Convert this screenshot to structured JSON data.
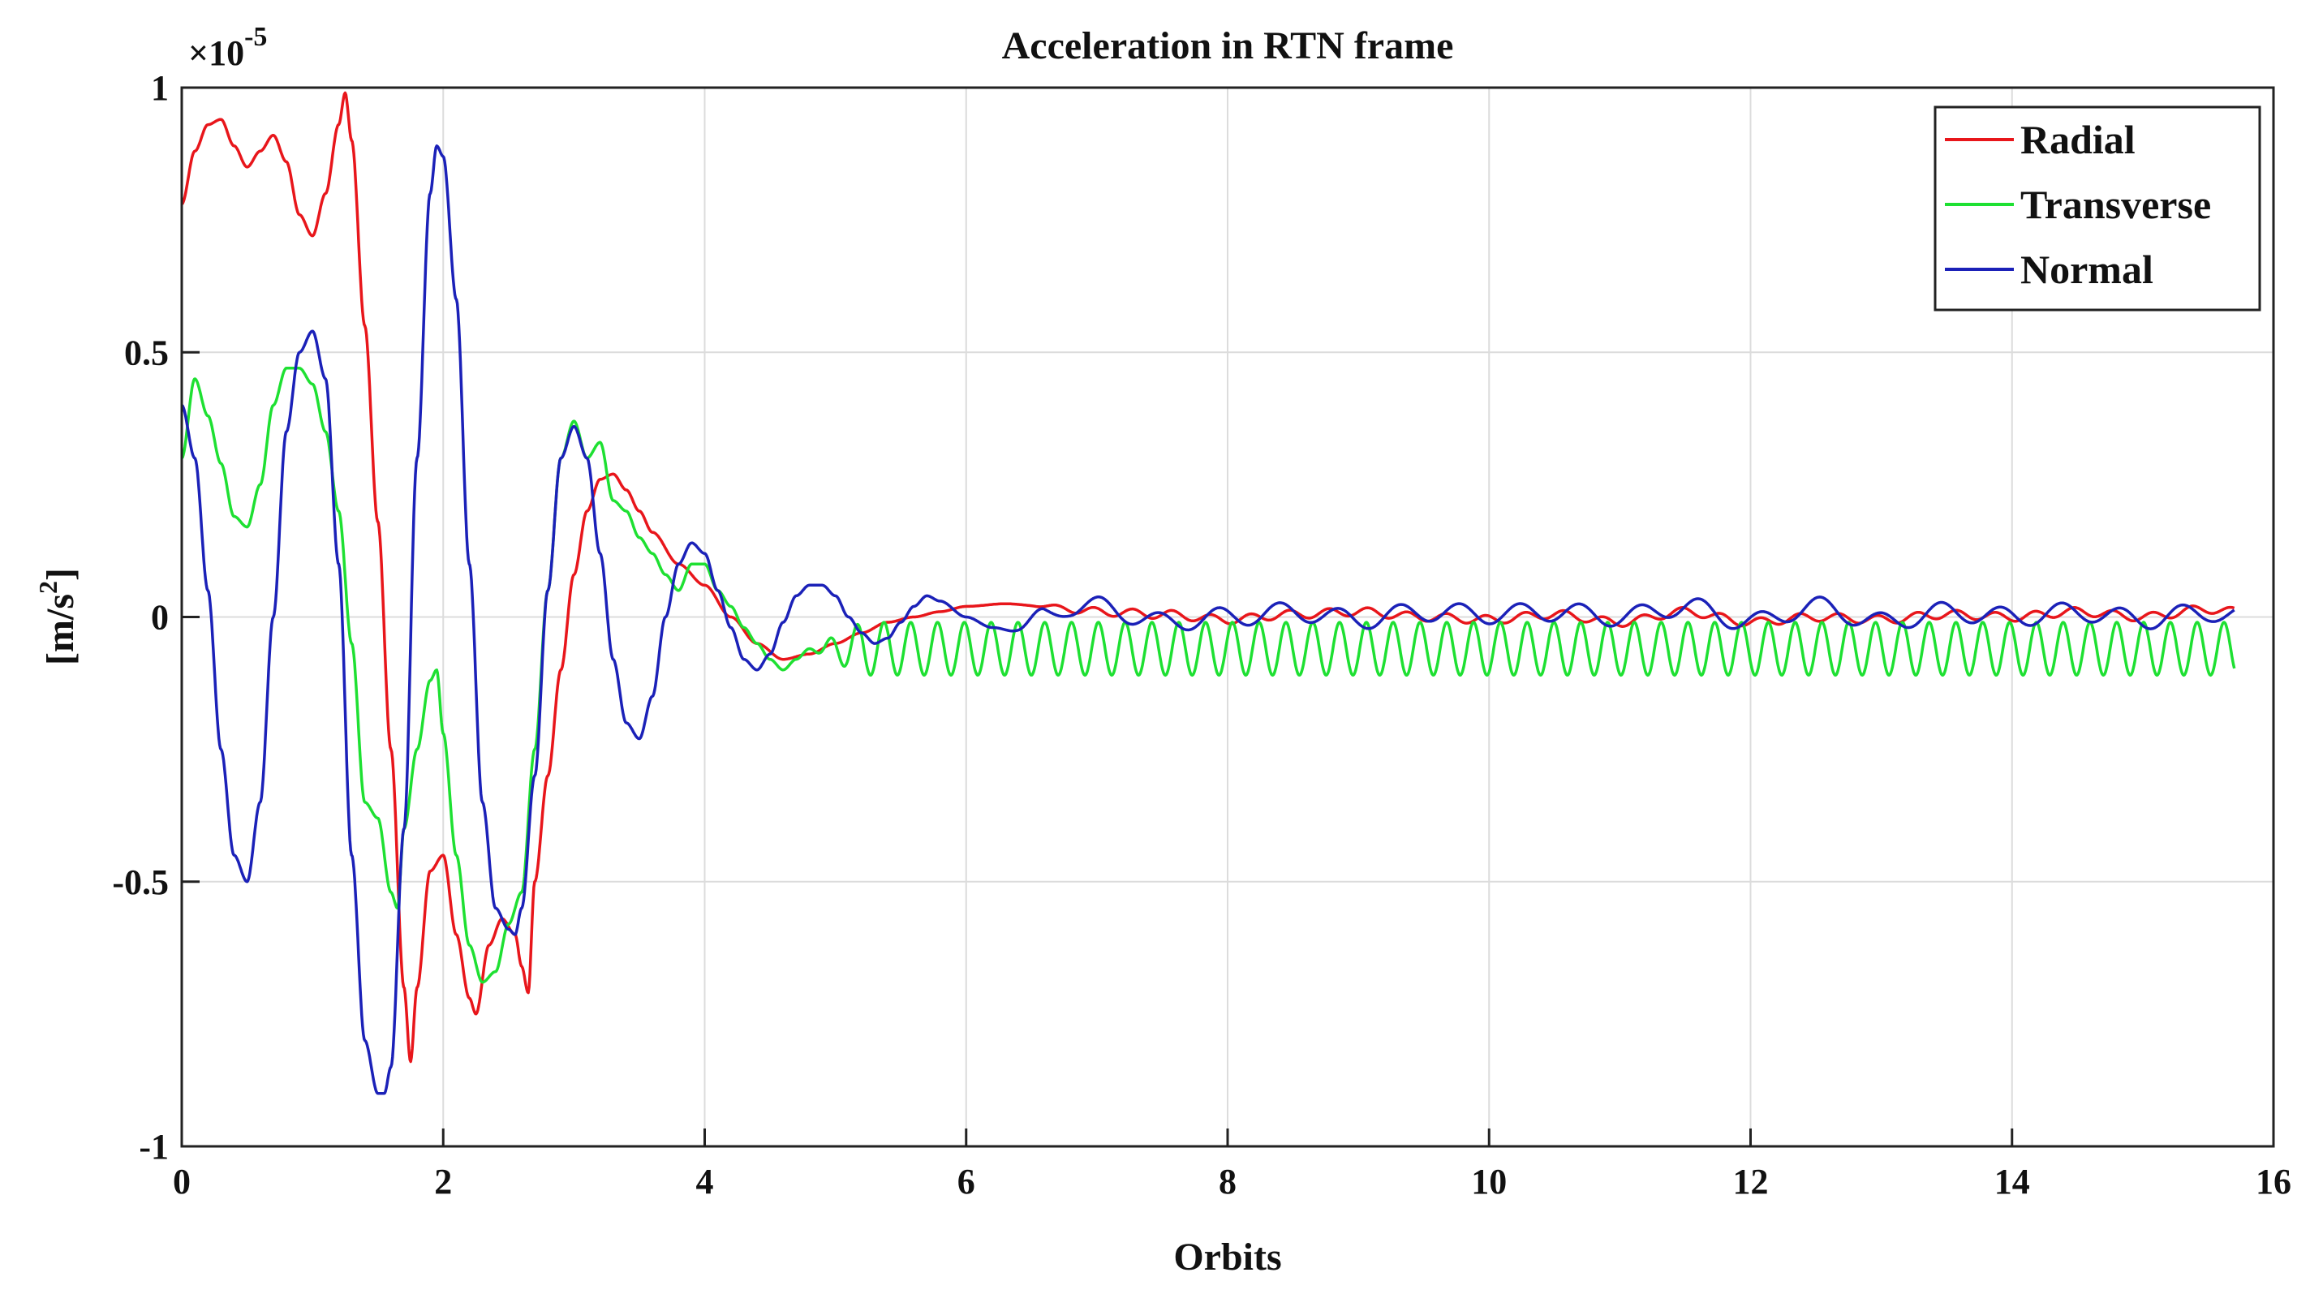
{
  "chart_data": {
    "type": "line",
    "title": "Acceleration in RTN frame",
    "xlabel": "Orbits",
    "ylabel_main": "[m/s",
    "ylabel_sup": "2",
    "ylabel_end": "]",
    "y_multiplier_base": "×10",
    "y_multiplier_exp": "-5",
    "xlim": [
      0,
      16
    ],
    "ylim": [
      -1,
      1
    ],
    "x_ticks": [
      0,
      2,
      4,
      6,
      8,
      10,
      12,
      14,
      16
    ],
    "y_ticks": [
      -1,
      -0.5,
      0,
      0.5,
      1
    ],
    "x_tick_labels": [
      "0",
      "2",
      "4",
      "6",
      "8",
      "10",
      "12",
      "14",
      "16"
    ],
    "y_tick_labels": [
      "-1",
      "-0.5",
      "0",
      "0.5",
      "1"
    ],
    "grid": true,
    "legend_position": "top-right",
    "series": [
      {
        "name": "Radial",
        "color": "#e8161b",
        "x": [
          0,
          0.1,
          0.2,
          0.3,
          0.4,
          0.5,
          0.6,
          0.7,
          0.8,
          0.9,
          1.0,
          1.1,
          1.2,
          1.25,
          1.3,
          1.4,
          1.5,
          1.6,
          1.7,
          1.75,
          1.8,
          1.9,
          2.0,
          2.1,
          2.2,
          2.25,
          2.35,
          2.45,
          2.55,
          2.6,
          2.65,
          2.7,
          2.8,
          2.9,
          3.0,
          3.1,
          3.2,
          3.3,
          3.4,
          3.5,
          3.6,
          3.8,
          4.0,
          4.2,
          4.4,
          4.6,
          4.8,
          5.0,
          5.2,
          5.4,
          5.6,
          5.8,
          6.0,
          6.3,
          6.6,
          7.0,
          7.5,
          8.0,
          8.5,
          9.0,
          9.5,
          10.0,
          10.5,
          11.0,
          11.5,
          12.0,
          12.5,
          13.0,
          13.5,
          14.0,
          14.5,
          15.0,
          15.5,
          15.7
        ],
        "y": [
          0.78,
          0.88,
          0.93,
          0.94,
          0.89,
          0.85,
          0.88,
          0.91,
          0.86,
          0.76,
          0.72,
          0.8,
          0.93,
          0.99,
          0.9,
          0.55,
          0.18,
          -0.25,
          -0.7,
          -0.84,
          -0.7,
          -0.48,
          -0.45,
          -0.6,
          -0.72,
          -0.75,
          -0.62,
          -0.57,
          -0.6,
          -0.66,
          -0.71,
          -0.5,
          -0.3,
          -0.1,
          0.08,
          0.2,
          0.26,
          0.27,
          0.24,
          0.2,
          0.16,
          0.1,
          0.06,
          0.0,
          -0.05,
          -0.08,
          -0.07,
          -0.05,
          -0.03,
          -0.01,
          0.0,
          0.01,
          0.02,
          0.025,
          0.02,
          0.01,
          0.005,
          -0.005,
          0.005,
          0.01,
          0.0,
          -0.005,
          0.005,
          -0.01,
          0.01,
          -0.01,
          0.0,
          -0.005,
          0.005,
          0.0,
          0.01,
          0.0,
          0.015,
          0.01
        ]
      },
      {
        "name": "Transverse",
        "color": "#1ee032",
        "x": [
          0,
          0.1,
          0.2,
          0.3,
          0.4,
          0.5,
          0.6,
          0.7,
          0.8,
          0.9,
          1.0,
          1.1,
          1.2,
          1.3,
          1.4,
          1.5,
          1.6,
          1.65,
          1.7,
          1.8,
          1.9,
          1.95,
          2.0,
          2.1,
          2.2,
          2.3,
          2.4,
          2.5,
          2.6,
          2.7,
          2.8,
          2.9,
          3.0,
          3.1,
          3.2,
          3.3,
          3.4,
          3.5,
          3.6,
          3.7,
          3.8,
          3.9,
          4.0,
          4.1,
          4.2,
          4.3,
          4.4,
          4.5,
          4.6,
          4.7,
          4.8
        ],
        "y": [
          0.3,
          0.45,
          0.38,
          0.29,
          0.19,
          0.17,
          0.25,
          0.4,
          0.47,
          0.47,
          0.44,
          0.35,
          0.2,
          -0.05,
          -0.35,
          -0.38,
          -0.52,
          -0.55,
          -0.4,
          -0.25,
          -0.12,
          -0.1,
          -0.22,
          -0.45,
          -0.62,
          -0.69,
          -0.67,
          -0.58,
          -0.52,
          -0.25,
          0.05,
          0.3,
          0.37,
          0.3,
          0.33,
          0.22,
          0.2,
          0.15,
          0.12,
          0.08,
          0.05,
          0.1,
          0.1,
          0.05,
          0.02,
          -0.02,
          -0.05,
          -0.08,
          -0.1,
          -0.08,
          -0.06
        ]
      },
      {
        "name": "Normal",
        "color": "#1b21b8",
        "x": [
          0,
          0.1,
          0.2,
          0.3,
          0.4,
          0.5,
          0.6,
          0.7,
          0.8,
          0.9,
          1.0,
          1.1,
          1.2,
          1.3,
          1.4,
          1.5,
          1.55,
          1.6,
          1.7,
          1.8,
          1.9,
          1.95,
          2.0,
          2.1,
          2.2,
          2.3,
          2.4,
          2.5,
          2.55,
          2.6,
          2.7,
          2.8,
          2.9,
          3.0,
          3.1,
          3.2,
          3.3,
          3.4,
          3.5,
          3.6,
          3.7,
          3.8,
          3.9,
          4.0,
          4.1,
          4.2,
          4.3,
          4.4,
          4.5,
          4.6,
          4.7,
          4.8,
          4.9,
          5.0,
          5.1,
          5.2,
          5.3,
          5.4,
          5.5,
          5.6,
          5.7,
          5.8,
          6.0,
          6.2,
          6.4,
          6.6,
          6.8,
          7.0,
          7.5,
          8.0,
          8.5,
          9.0,
          9.5,
          10.0,
          10.5,
          11.0,
          11.5,
          12.0,
          12.5,
          13.0,
          13.5,
          14.0,
          14.5,
          15.0,
          15.5,
          15.7
        ],
        "y": [
          0.4,
          0.3,
          0.05,
          -0.25,
          -0.45,
          -0.5,
          -0.35,
          0.0,
          0.35,
          0.5,
          0.54,
          0.45,
          0.1,
          -0.45,
          -0.8,
          -0.9,
          -0.9,
          -0.85,
          -0.4,
          0.3,
          0.8,
          0.89,
          0.87,
          0.6,
          0.1,
          -0.35,
          -0.55,
          -0.59,
          -0.6,
          -0.55,
          -0.3,
          0.05,
          0.3,
          0.36,
          0.3,
          0.12,
          -0.08,
          -0.2,
          -0.23,
          -0.15,
          0.0,
          0.1,
          0.14,
          0.12,
          0.05,
          -0.02,
          -0.08,
          -0.1,
          -0.07,
          -0.01,
          0.04,
          0.06,
          0.06,
          0.04,
          0.0,
          -0.03,
          -0.05,
          -0.04,
          -0.01,
          0.02,
          0.04,
          0.03,
          0.0,
          -0.02,
          -0.02,
          0.0,
          0.02,
          0.02,
          -0.01,
          0.0,
          0.01,
          -0.005,
          0.01,
          0.005,
          0.01,
          0.0,
          0.02,
          -0.01,
          0.02,
          -0.01,
          0.01,
          0.0,
          0.01,
          -0.005,
          0.01,
          0.0
        ]
      }
    ]
  }
}
